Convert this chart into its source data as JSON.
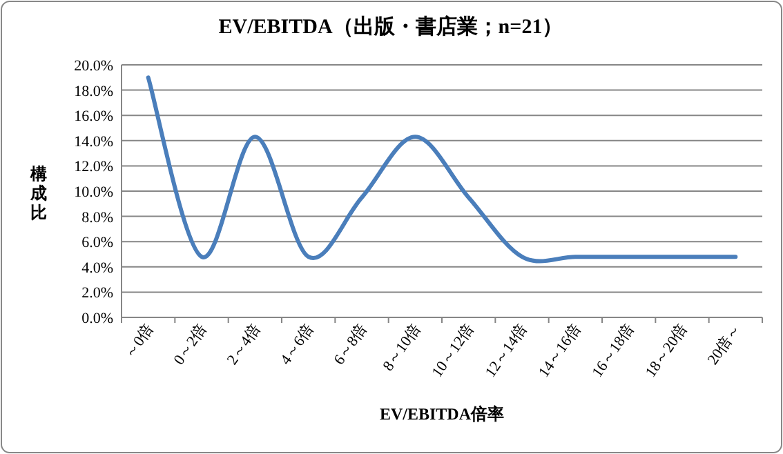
{
  "chart_data": {
    "type": "line",
    "title": "EV/EBITDA（出版・書店業；n=21）",
    "xlabel": "EV/EBITDA倍率",
    "ylabel": "構成比",
    "categories": [
      "～0倍",
      "0～2倍",
      "2～4倍",
      "4～6倍",
      "6～8倍",
      "8～10倍",
      "10～12倍",
      "12～14倍",
      "14～16倍",
      "16～18倍",
      "18～20倍",
      "20倍～"
    ],
    "series": [
      {
        "color": "#4a7ebb",
        "values": [
          19.0,
          4.8,
          14.3,
          4.8,
          9.5,
          14.3,
          9.5,
          4.8,
          4.8,
          4.8,
          4.8,
          4.8
        ]
      }
    ],
    "ylim": [
      0,
      20
    ],
    "yticks": [
      {
        "value": 0,
        "label": "0.0%"
      },
      {
        "value": 2,
        "label": "2.0%"
      },
      {
        "value": 4,
        "label": "4.0%"
      },
      {
        "value": 6,
        "label": "6.0%"
      },
      {
        "value": 8,
        "label": "8.0%"
      },
      {
        "value": 10,
        "label": "10.0%"
      },
      {
        "value": 12,
        "label": "12.0%"
      },
      {
        "value": 14,
        "label": "14.0%"
      },
      {
        "value": 16,
        "label": "16.0%"
      },
      {
        "value": 18,
        "label": "18.0%"
      },
      {
        "value": 20,
        "label": "20.0%"
      }
    ],
    "grid": "y",
    "marker": "none",
    "line_style": "solid"
  }
}
